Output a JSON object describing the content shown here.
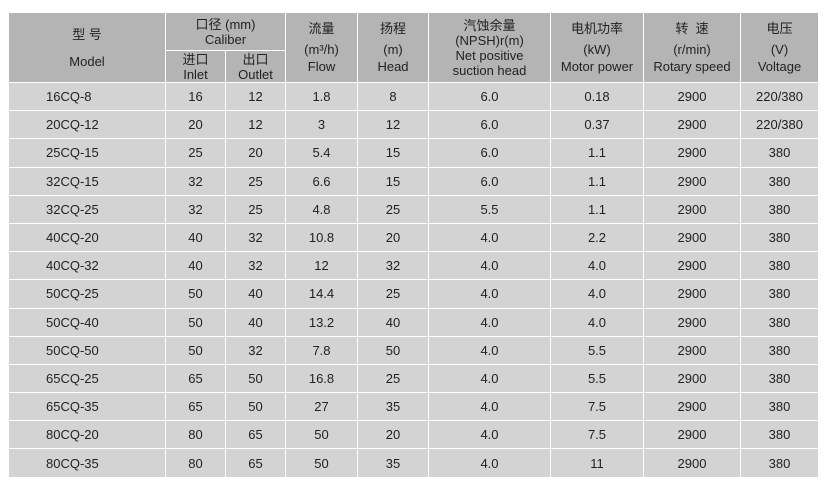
{
  "header": {
    "model": {
      "cn": "型 号",
      "en": "Model"
    },
    "caliber": {
      "cn": "口径 (mm)",
      "en": "Caliber",
      "inlet_cn": "进口",
      "inlet_en": "Inlet",
      "outlet_cn": "出口",
      "outlet_en": "Outlet"
    },
    "flow": {
      "cn": "流量",
      "unit": "(m³/h)",
      "en": "Flow"
    },
    "head": {
      "cn": "扬程",
      "unit": "(m)",
      "en": "Head"
    },
    "npsh": {
      "cn": "汽蚀余量",
      "unit": "(NPSH)r(m)",
      "en1": "Net positive",
      "en2": "suction head"
    },
    "power": {
      "cn": "电机功率",
      "unit": "(kW)",
      "en": "Motor power"
    },
    "speed": {
      "cn": "转  速",
      "unit": "(r/min)",
      "en": "Rotary speed"
    },
    "voltage": {
      "cn": "电压",
      "unit": "(V)",
      "en": "Voltage"
    }
  },
  "rows": [
    [
      "16CQ-8",
      "16",
      "12",
      "1.8",
      "8",
      "6.0",
      "0.18",
      "2900",
      "220/380"
    ],
    [
      "20CQ-12",
      "20",
      "12",
      "3",
      "12",
      "6.0",
      "0.37",
      "2900",
      "220/380"
    ],
    [
      "25CQ-15",
      "25",
      "20",
      "5.4",
      "15",
      "6.0",
      "1.1",
      "2900",
      "380"
    ],
    [
      "32CQ-15",
      "32",
      "25",
      "6.6",
      "15",
      "6.0",
      "1.1",
      "2900",
      "380"
    ],
    [
      "32CQ-25",
      "32",
      "25",
      "4.8",
      "25",
      "5.5",
      "1.1",
      "2900",
      "380"
    ],
    [
      "40CQ-20",
      "40",
      "32",
      "10.8",
      "20",
      "4.0",
      "2.2",
      "2900",
      "380"
    ],
    [
      "40CQ-32",
      "40",
      "32",
      "12",
      "32",
      "4.0",
      "4.0",
      "2900",
      "380"
    ],
    [
      "50CQ-25",
      "50",
      "40",
      "14.4",
      "25",
      "4.0",
      "4.0",
      "2900",
      "380"
    ],
    [
      "50CQ-40",
      "50",
      "40",
      "13.2",
      "40",
      "4.0",
      "4.0",
      "2900",
      "380"
    ],
    [
      "50CQ-50",
      "50",
      "32",
      "7.8",
      "50",
      "4.0",
      "5.5",
      "2900",
      "380"
    ],
    [
      "65CQ-25",
      "65",
      "50",
      "16.8",
      "25",
      "4.0",
      "5.5",
      "2900",
      "380"
    ],
    [
      "65CQ-35",
      "65",
      "50",
      "27",
      "35",
      "4.0",
      "7.5",
      "2900",
      "380"
    ],
    [
      "80CQ-20",
      "80",
      "65",
      "50",
      "20",
      "4.0",
      "7.5",
      "2900",
      "380"
    ],
    [
      "80CQ-35",
      "80",
      "65",
      "50",
      "35",
      "4.0",
      "11",
      "2900",
      "380"
    ]
  ]
}
